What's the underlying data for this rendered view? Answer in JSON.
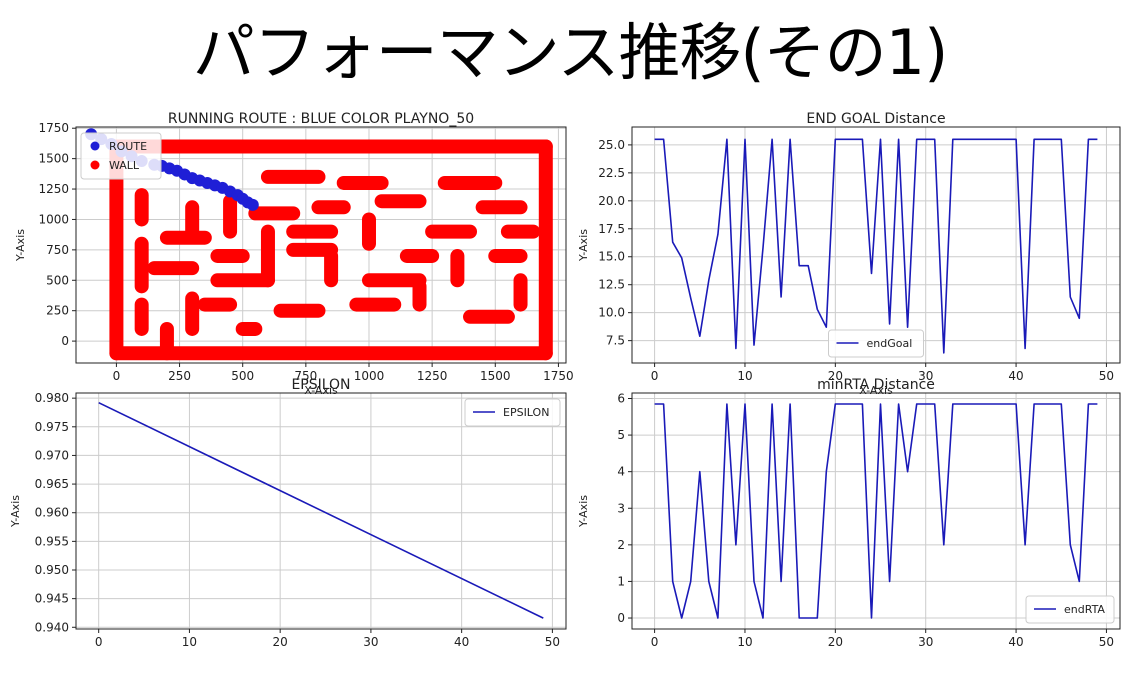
{
  "slide": {
    "title": "パフォーマンス推移(その1)"
  },
  "colors": {
    "route": "#1f1fd6",
    "wall": "#ff0000",
    "line": "#1a1ab8",
    "grid": "#cccccc"
  },
  "chart_data": [
    {
      "id": "route",
      "type": "scatter",
      "title": "RUNNING ROUTE : BLUE COLOR PLAYNO_50",
      "xlabel": "X-Axis",
      "ylabel": "Y-Axis",
      "xlim": [
        -160,
        1780
      ],
      "ylim": [
        -180,
        1760
      ],
      "xticks": [
        0,
        250,
        500,
        750,
        1000,
        1250,
        1500,
        1750
      ],
      "yticks": [
        0,
        250,
        500,
        750,
        1000,
        1250,
        1500,
        1750
      ],
      "grid": true,
      "legend": "top-left",
      "series": [
        {
          "name": "ROUTE",
          "color": "#1f1fd6",
          "points": [
            [
              -100,
              1700
            ],
            [
              -60,
              1660
            ],
            [
              -20,
              1620
            ],
            [
              20,
              1560
            ],
            [
              60,
              1520
            ],
            [
              100,
              1480
            ],
            [
              150,
              1450
            ],
            [
              180,
              1440
            ],
            [
              210,
              1420
            ],
            [
              240,
              1400
            ],
            [
              270,
              1370
            ],
            [
              300,
              1340
            ],
            [
              330,
              1320
            ],
            [
              360,
              1300
            ],
            [
              390,
              1280
            ],
            [
              420,
              1260
            ],
            [
              450,
              1230
            ],
            [
              480,
              1200
            ],
            [
              500,
              1170
            ],
            [
              520,
              1140
            ],
            [
              540,
              1120
            ]
          ]
        },
        {
          "name": "WALL",
          "color": "#ff0000",
          "segments": [
            [
              [
                0,
                -100
              ],
              [
                1700,
                -100
              ]
            ],
            [
              [
                0,
                1600
              ],
              [
                1700,
                1600
              ]
            ],
            [
              [
                0,
                -100
              ],
              [
                0,
                1600
              ]
            ],
            [
              [
                1700,
                -100
              ],
              [
                1700,
                1600
              ]
            ],
            [
              [
                100,
                100
              ],
              [
                100,
                300
              ]
            ],
            [
              [
                100,
                450
              ],
              [
                100,
                800
              ]
            ],
            [
              [
                100,
                1000
              ],
              [
                100,
                1200
              ]
            ],
            [
              [
                200,
                -100
              ],
              [
                200,
                100
              ]
            ],
            [
              [
                150,
                600
              ],
              [
                300,
                600
              ]
            ],
            [
              [
                200,
                850
              ],
              [
                350,
                850
              ]
            ],
            [
              [
                300,
                100
              ],
              [
                300,
                350
              ]
            ],
            [
              [
                300,
                900
              ],
              [
                300,
                1100
              ]
            ],
            [
              [
                350,
                300
              ],
              [
                450,
                300
              ]
            ],
            [
              [
                400,
                500
              ],
              [
                600,
                500
              ]
            ],
            [
              [
                400,
                700
              ],
              [
                500,
                700
              ]
            ],
            [
              [
                450,
                900
              ],
              [
                450,
                1150
              ]
            ],
            [
              [
                500,
                100
              ],
              [
                550,
                100
              ]
            ],
            [
              [
                600,
                500
              ],
              [
                600,
                900
              ]
            ],
            [
              [
                550,
                1050
              ],
              [
                700,
                1050
              ]
            ],
            [
              [
                600,
                1350
              ],
              [
                800,
                1350
              ]
            ],
            [
              [
                650,
                250
              ],
              [
                800,
                250
              ]
            ],
            [
              [
                700,
                750
              ],
              [
                850,
                750
              ]
            ],
            [
              [
                700,
                900
              ],
              [
                850,
                900
              ]
            ],
            [
              [
                800,
                1100
              ],
              [
                900,
                1100
              ]
            ],
            [
              [
                850,
                500
              ],
              [
                850,
                700
              ]
            ],
            [
              [
                900,
                1300
              ],
              [
                1050,
                1300
              ]
            ],
            [
              [
                950,
                300
              ],
              [
                1100,
                300
              ]
            ],
            [
              [
                1000,
                500
              ],
              [
                1200,
                500
              ]
            ],
            [
              [
                1000,
                800
              ],
              [
                1000,
                1000
              ]
            ],
            [
              [
                1050,
                1150
              ],
              [
                1200,
                1150
              ]
            ],
            [
              [
                1150,
                700
              ],
              [
                1250,
                700
              ]
            ],
            [
              [
                1200,
                300
              ],
              [
                1200,
                450
              ]
            ],
            [
              [
                1250,
                900
              ],
              [
                1400,
                900
              ]
            ],
            [
              [
                1300,
                1300
              ],
              [
                1500,
                1300
              ]
            ],
            [
              [
                1350,
                500
              ],
              [
                1350,
                700
              ]
            ],
            [
              [
                1400,
                200
              ],
              [
                1550,
                200
              ]
            ],
            [
              [
                1450,
                1100
              ],
              [
                1600,
                1100
              ]
            ],
            [
              [
                1500,
                700
              ],
              [
                1600,
                700
              ]
            ],
            [
              [
                1600,
                300
              ],
              [
                1600,
                500
              ]
            ],
            [
              [
                1550,
                900
              ],
              [
                1650,
                900
              ]
            ]
          ]
        }
      ]
    },
    {
      "id": "endgoal",
      "type": "line",
      "title": "END GOAL Distance",
      "xlabel": "X-Axis",
      "ylabel": "Y-Axis",
      "xlim": [
        -2.5,
        51.5
      ],
      "ylim": [
        5.5,
        26.6
      ],
      "xticks": [
        0,
        10,
        20,
        30,
        40,
        50
      ],
      "yticks": [
        7.5,
        10.0,
        12.5,
        15.0,
        17.5,
        20.0,
        22.5,
        25.0
      ],
      "ytick_format": "fixed1",
      "grid": true,
      "legend": "lower center",
      "series": [
        {
          "name": "endGoal",
          "x": [
            0,
            1,
            2,
            3,
            4,
            5,
            6,
            7,
            8,
            9,
            10,
            11,
            12,
            13,
            14,
            15,
            16,
            17,
            18,
            19,
            20,
            21,
            22,
            23,
            24,
            25,
            26,
            27,
            28,
            29,
            30,
            31,
            32,
            33,
            34,
            35,
            36,
            37,
            38,
            39,
            40,
            41,
            42,
            43,
            44,
            45,
            46,
            47,
            48,
            49
          ],
          "values": [
            25.5,
            25.5,
            16.3,
            14.9,
            11.3,
            7.9,
            12.9,
            17.0,
            25.5,
            6.8,
            25.5,
            7.1,
            15.8,
            25.5,
            11.4,
            25.5,
            14.2,
            14.2,
            10.3,
            8.7,
            25.5,
            25.5,
            25.5,
            25.5,
            13.5,
            25.5,
            9.0,
            25.5,
            8.7,
            25.5,
            25.5,
            25.5,
            6.4,
            25.5,
            25.5,
            25.5,
            25.5,
            25.5,
            25.5,
            25.5,
            25.5,
            6.8,
            25.5,
            25.5,
            25.5,
            25.5,
            11.4,
            9.5,
            25.5,
            25.5
          ]
        }
      ]
    },
    {
      "id": "epsilon",
      "type": "line",
      "title": "EPSILON",
      "xlabel": "",
      "ylabel": "Y-Axis",
      "xlim": [
        -2.5,
        51.5
      ],
      "ylim": [
        0.9397,
        0.9809
      ],
      "xticks": [
        0,
        10,
        20,
        30,
        40,
        50
      ],
      "yticks": [
        0.94,
        0.945,
        0.95,
        0.955,
        0.96,
        0.965,
        0.97,
        0.975,
        0.98
      ],
      "ytick_format": "fixed3",
      "grid": true,
      "legend": "top-right",
      "series": [
        {
          "name": "EPSILON",
          "x": [
            0,
            49
          ],
          "values": [
            0.9792,
            0.9416
          ]
        }
      ]
    },
    {
      "id": "minrta",
      "type": "line",
      "title": "minRTA Distance",
      "xlabel": "",
      "ylabel": "Y-Axis",
      "xlim": [
        -2.5,
        51.5
      ],
      "ylim": [
        -0.3,
        6.15
      ],
      "xticks": [
        0,
        10,
        20,
        30,
        40,
        50
      ],
      "yticks": [
        0,
        1,
        2,
        3,
        4,
        5,
        6
      ],
      "ytick_format": "int",
      "grid": true,
      "legend": "lower right",
      "series": [
        {
          "name": "endRTA",
          "x": [
            0,
            1,
            2,
            3,
            4,
            5,
            6,
            7,
            8,
            9,
            10,
            11,
            12,
            13,
            14,
            15,
            16,
            17,
            18,
            19,
            20,
            21,
            22,
            23,
            24,
            25,
            26,
            27,
            28,
            29,
            30,
            31,
            32,
            33,
            34,
            35,
            36,
            37,
            38,
            39,
            40,
            41,
            42,
            43,
            44,
            45,
            46,
            47,
            48,
            49
          ],
          "values": [
            5.85,
            5.85,
            1.0,
            0.0,
            1.0,
            4.0,
            1.0,
            0.0,
            5.85,
            2.0,
            5.85,
            1.0,
            0.0,
            5.85,
            1.0,
            5.85,
            0.0,
            0.0,
            0.0,
            4.0,
            5.85,
            5.85,
            5.85,
            5.85,
            0.0,
            5.85,
            1.0,
            5.85,
            4.0,
            5.85,
            5.85,
            5.85,
            2.0,
            5.85,
            5.85,
            5.85,
            5.85,
            5.85,
            5.85,
            5.85,
            5.85,
            2.0,
            5.85,
            5.85,
            5.85,
            5.85,
            2.0,
            1.0,
            5.85,
            5.85
          ]
        }
      ]
    }
  ]
}
